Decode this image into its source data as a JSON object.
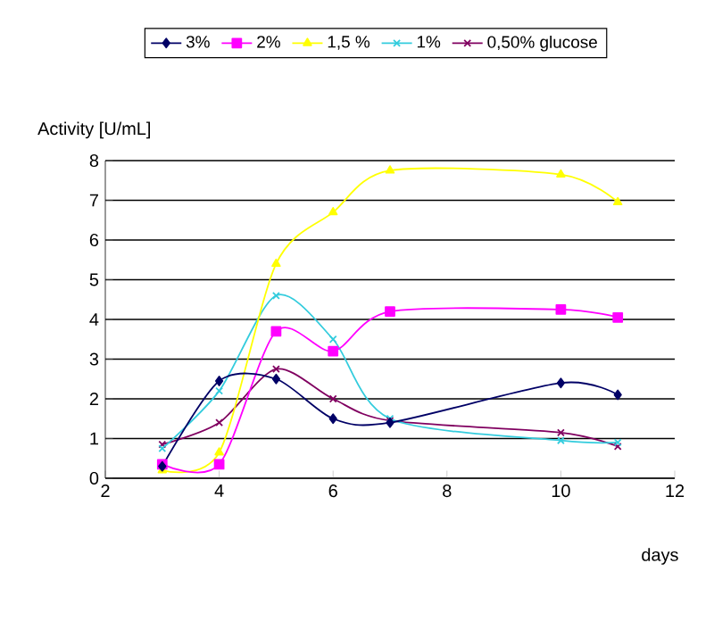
{
  "chart_data": {
    "type": "line",
    "xlabel": "days",
    "ylabel": "Activity  [U/mL]",
    "x": [
      3,
      4,
      5,
      6,
      7,
      10,
      11
    ],
    "xlim": [
      2,
      12
    ],
    "xticks": [
      2,
      4,
      6,
      8,
      10,
      12
    ],
    "ylim": [
      0,
      8
    ],
    "yticks": [
      0,
      1,
      2,
      3,
      4,
      5,
      6,
      7,
      8
    ],
    "grid": "y",
    "legend": "top",
    "series": [
      {
        "name": "3%",
        "color": "#000066",
        "marker": "diamond",
        "values": [
          0.3,
          2.45,
          2.5,
          1.5,
          1.4,
          2.4,
          2.1
        ]
      },
      {
        "name": "2%",
        "color": "#ff00ff",
        "marker": "square",
        "values": [
          0.35,
          0.35,
          3.7,
          3.2,
          4.2,
          4.25,
          4.05
        ]
      },
      {
        "name": "1,5 %",
        "color": "#ffff00",
        "marker": "triangle",
        "values": [
          0.2,
          0.65,
          5.4,
          6.7,
          7.75,
          7.65,
          6.95
        ]
      },
      {
        "name": "1%",
        "color": "#33ccdd",
        "marker": "cross",
        "values": [
          0.75,
          2.2,
          4.6,
          3.5,
          1.5,
          0.95,
          0.9
        ]
      },
      {
        "name": "0,50% glucose",
        "color": "#800060",
        "marker": "cross",
        "values": [
          0.85,
          1.4,
          2.75,
          2.0,
          1.45,
          1.15,
          0.8
        ]
      }
    ]
  }
}
